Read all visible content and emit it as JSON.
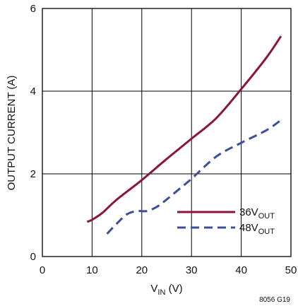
{
  "chart_data": {
    "type": "line",
    "x_label": {
      "main": "V",
      "sub": "IN",
      "tail": " (V)"
    },
    "y_label": "OUTPUT CURRENT (A)",
    "xlim": [
      0,
      50
    ],
    "ylim": [
      0,
      6
    ],
    "x_ticks": [
      "0",
      "10",
      "20",
      "30",
      "40",
      "50"
    ],
    "y_ticks": [
      "0",
      "2",
      "4",
      "6"
    ],
    "grid": true,
    "legend_position": "bottom-right",
    "figure_id": "8056 G19",
    "series": [
      {
        "name_main": "36V",
        "name_sub": "OUT",
        "color": "#8b1538",
        "dash": "solid",
        "x": [
          9,
          10,
          12,
          15,
          20,
          25,
          30,
          35,
          40,
          45,
          48
        ],
        "y": [
          0.84,
          0.89,
          1.05,
          1.38,
          1.85,
          2.36,
          2.85,
          3.35,
          4.05,
          4.8,
          5.33
        ]
      },
      {
        "name_main": "48V",
        "name_sub": "OUT",
        "color": "#3b4f9a",
        "dash": "dashed",
        "x": [
          13,
          15,
          17,
          19,
          21,
          23,
          25,
          28,
          30,
          35,
          40,
          45,
          48
        ],
        "y": [
          0.55,
          0.8,
          1.02,
          1.1,
          1.1,
          1.2,
          1.38,
          1.68,
          1.88,
          2.42,
          2.75,
          3.05,
          3.3
        ]
      }
    ]
  }
}
